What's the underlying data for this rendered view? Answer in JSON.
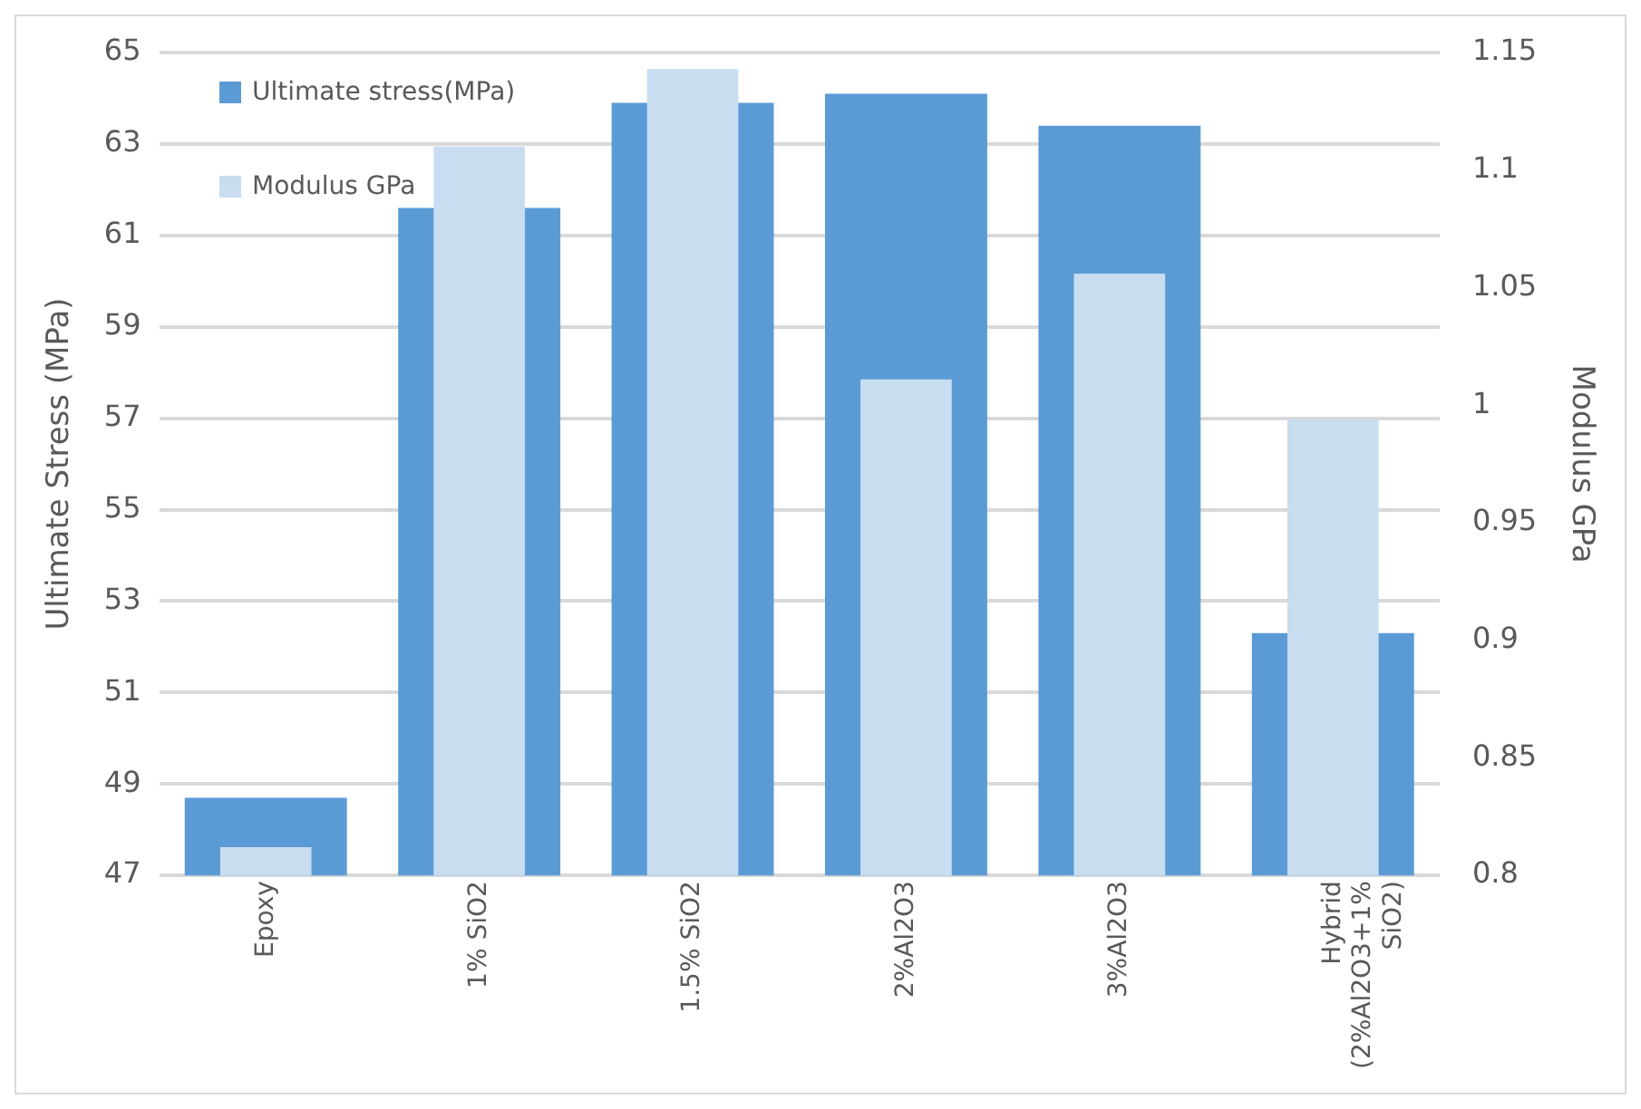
{
  "chart_data": {
    "type": "bar",
    "ylabel": "Ultimate Stress (MPa)",
    "y2label": "Modulus GPa",
    "categories": [
      "Epoxy",
      "1% SiO2",
      "1.5% SiO2",
      "2%Al2O3",
      "3%Al2O3",
      "Hybrid (2%Al2O3+1% SiO2)"
    ],
    "series": [
      {
        "name": "Ultimate stress(MPa)",
        "color": "#5b9bd5",
        "values": [
          48.7,
          61.6,
          63.9,
          64.1,
          63.4,
          52.3
        ]
      },
      {
        "name": "Modulus GPa",
        "color": "#c9ddf1",
        "axis": "y2",
        "values": [
          0.812,
          1.11,
          1.143,
          1.011,
          1.056,
          0.994
        ]
      }
    ],
    "ylim": [
      47,
      65
    ],
    "yticks": [
      47,
      49,
      51,
      53,
      55,
      57,
      59,
      61,
      63,
      65
    ],
    "y2lim": [
      0.8,
      1.15
    ],
    "y2ticks": [
      0.8,
      0.85,
      0.9,
      0.95,
      1,
      1.05,
      1.1,
      1.15
    ],
    "grid": "y",
    "legend": "top left"
  }
}
